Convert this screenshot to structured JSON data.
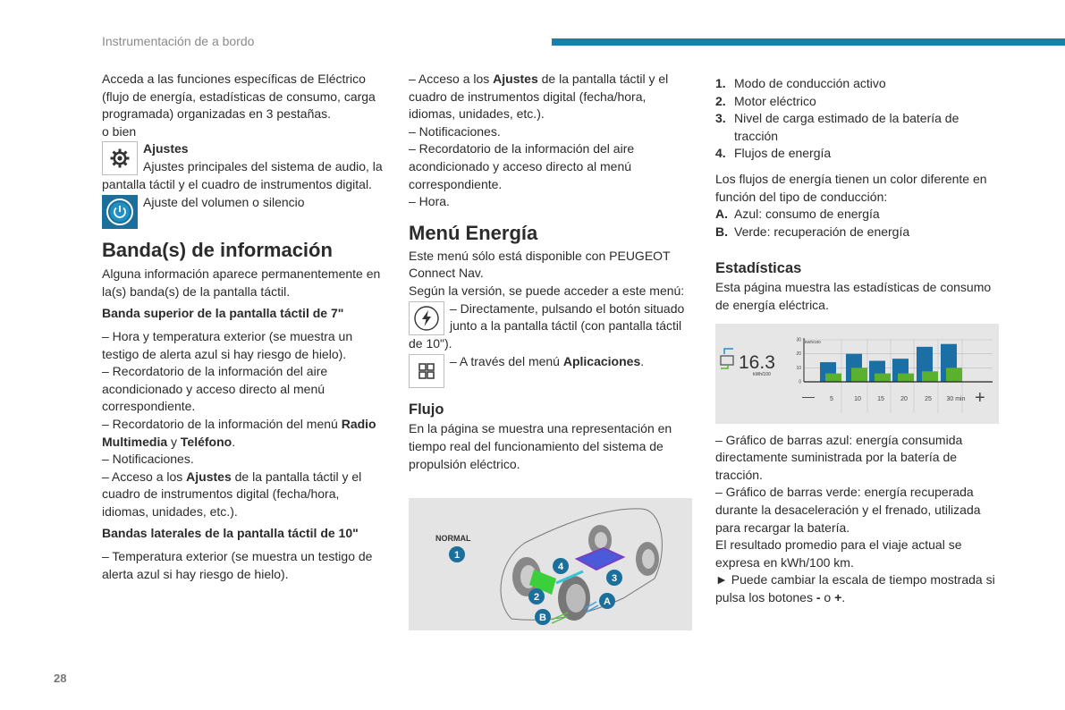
{
  "header": {
    "section_title": "Instrumentación de a bordo",
    "page_number": "28",
    "accent_color": "#1b7fae"
  },
  "col1": {
    "intro": "Acceda a las funciones específicas de Eléctrico (flujo de energía, estadísticas de consumo, carga programada) organizadas en 3 pestañas.",
    "or": "o bien",
    "settings_title": "Ajustes",
    "settings_text": "Ajustes principales del sistema de audio, la pantalla táctil y el cuadro de instrumentos digital.",
    "volume_text": "Ajuste del volumen o silencio",
    "heading": "Banda(s) de información",
    "heading_text": "Alguna información aparece permanentemente en la(s) banda(s) de la pantalla táctil.",
    "sub1": "Banda superior de la pantalla táctil de 7\"",
    "l1": "– Hora y temperatura exterior (se muestra un testigo de alerta azul si hay riesgo de hielo).",
    "l2": "– Recordatorio de la información del aire acondicionado y acceso directo al menú correspondiente.",
    "l3a": "– Recordatorio de la información del menú ",
    "l3b": "Radio Multimedia",
    "l3c": " y ",
    "l3d": "Teléfono",
    "l3e": ".",
    "l4": "– Notificaciones.",
    "l5a": "– Acceso a los ",
    "l5b": "Ajustes",
    "l5c": " de la pantalla táctil y el cuadro de instrumentos digital (fecha/hora, idiomas, unidades, etc.).",
    "sub2": "Bandas laterales de la pantalla táctil de 10\"",
    "l6": "– Temperatura exterior (se muestra un testigo de alerta azul si hay riesgo de hielo)."
  },
  "col2": {
    "l1a": "– Acceso a los ",
    "l1b": "Ajustes",
    "l1c": " de la pantalla táctil y el cuadro de instrumentos digital (fecha/hora, idiomas, unidades, etc.).",
    "l2": "– Notificaciones.",
    "l3": "– Recordatorio de la información del aire acondicionado y acceso directo al menú correspondiente.",
    "l4": "– Hora.",
    "heading": "Menú Energía",
    "p1": "Este menú sólo está disponible con PEUGEOT Connect Nav.",
    "p2": "Según la versión, se puede acceder a este menú:",
    "direct": "– Directamente, pulsando el botón situado junto a la pantalla táctil (con pantalla táctil de 10\").",
    "via_a": "– A través del menú ",
    "via_b": "Aplicaciones",
    "via_c": ".",
    "flow_heading": "Flujo",
    "flow_text": "En la página se muestra una representación en tiempo real del funcionamiento del sistema de propulsión eléctrico.",
    "figure": {
      "mode": "NORMAL",
      "markers": [
        "1",
        "2",
        "3",
        "4",
        "A",
        "B"
      ]
    }
  },
  "col3": {
    "items": [
      {
        "n": "1.",
        "t": "Modo de conducción activo"
      },
      {
        "n": "2.",
        "t": "Motor eléctrico"
      },
      {
        "n": "3.",
        "t": "Nivel de carga estimado de la batería de tracción"
      },
      {
        "n": "4.",
        "t": "Flujos de energía"
      }
    ],
    "flows_text": "Los flujos de energía tienen un color diferente en función del tipo de conducción:",
    "colors": [
      {
        "n": "A.",
        "t": "Azul: consumo de energía"
      },
      {
        "n": "B.",
        "t": "Verde: recuperación de energía"
      }
    ],
    "stats_heading": "Estadísticas",
    "stats_text": "Esta página muestra las estadísticas de consumo de energía eléctrica.",
    "b1": "– Gráfico de barras azul: energía consumida directamente suministrada por la batería de tracción.",
    "b2": "– Gráfico de barras verde: energía recuperada durante la desaceleración y el frenado, utilizada para recargar la batería.",
    "b3": "El resultado promedio para el viaje actual se expresa en kWh/100 km.",
    "b4a": "► Puede cambiar la escala de tiempo mostrada si pulsa los botones ",
    "b4b": "-",
    "b4c": " o ",
    "b4d": "+",
    "b4e": "."
  },
  "chart_data": {
    "type": "bar",
    "readout": "16.3",
    "readout_unit": "kWh/100",
    "ylabel": "kWh/100",
    "ylim": [
      0,
      30
    ],
    "yticks": [
      "0",
      "10",
      "20",
      "30"
    ],
    "categories": [
      "5",
      "10",
      "15",
      "20",
      "25",
      "30 min"
    ],
    "series": [
      {
        "color": "#1a6fa5",
        "values": [
          14,
          20,
          15,
          16.5,
          25,
          27
        ]
      },
      {
        "color": "#5cb030",
        "values": [
          6,
          10,
          6,
          6,
          7.5,
          10
        ]
      }
    ],
    "minus_label": "—",
    "plus_label": "+",
    "grid": true
  }
}
